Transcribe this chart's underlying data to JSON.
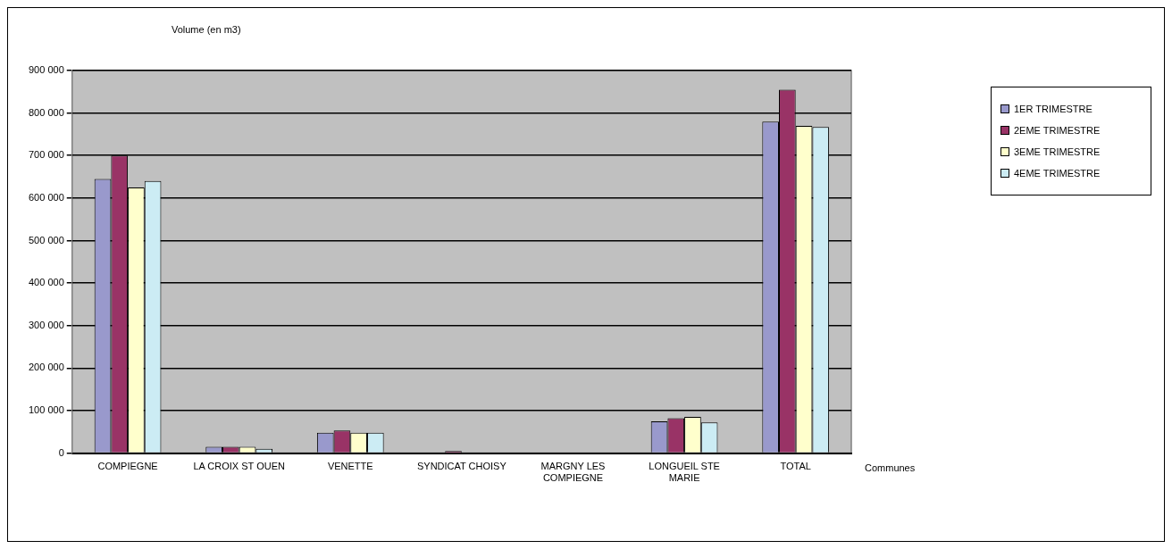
{
  "chart_data": {
    "type": "bar",
    "ylabel": "Volume (en m3)",
    "xlabel": "Communes",
    "categories": [
      "COMPIEGNE",
      "LA CROIX ST OUEN",
      "VENETTE",
      "SYNDICAT CHOISY",
      "MARGNY LES COMPIEGNE",
      "LONGUEIL STE MARIE",
      "TOTAL"
    ],
    "series": [
      {
        "name": "1ER TRIMESTRE",
        "color": "#9999cc",
        "values": [
          645000,
          15000,
          48000,
          0,
          0,
          75000,
          780000
        ]
      },
      {
        "name": "2EME TRIMESTRE",
        "color": "#993366",
        "values": [
          700000,
          15000,
          53000,
          5000,
          0,
          82000,
          855000
        ]
      },
      {
        "name": "3EME TRIMESTRE",
        "color": "#ffffcc",
        "values": [
          625000,
          15000,
          48000,
          0,
          0,
          85000,
          770000
        ]
      },
      {
        "name": "4EME TRIMESTRE",
        "color": "#ccecf4",
        "values": [
          640000,
          10000,
          48000,
          0,
          0,
          72000,
          767000
        ]
      }
    ],
    "ylim": [
      0,
      900000
    ],
    "yticks": [
      {
        "value": 0,
        "label": "0"
      },
      {
        "value": 100000,
        "label": "100 000"
      },
      {
        "value": 200000,
        "label": "200 000"
      },
      {
        "value": 300000,
        "label": "300 000"
      },
      {
        "value": 400000,
        "label": "400 000"
      },
      {
        "value": 500000,
        "label": "500 000"
      },
      {
        "value": 600000,
        "label": "600 000"
      },
      {
        "value": 700000,
        "label": "700 000"
      },
      {
        "value": 800000,
        "label": "800 000"
      },
      {
        "value": 900000,
        "label": "900 000"
      }
    ],
    "grid": "y",
    "legend": "top right"
  }
}
